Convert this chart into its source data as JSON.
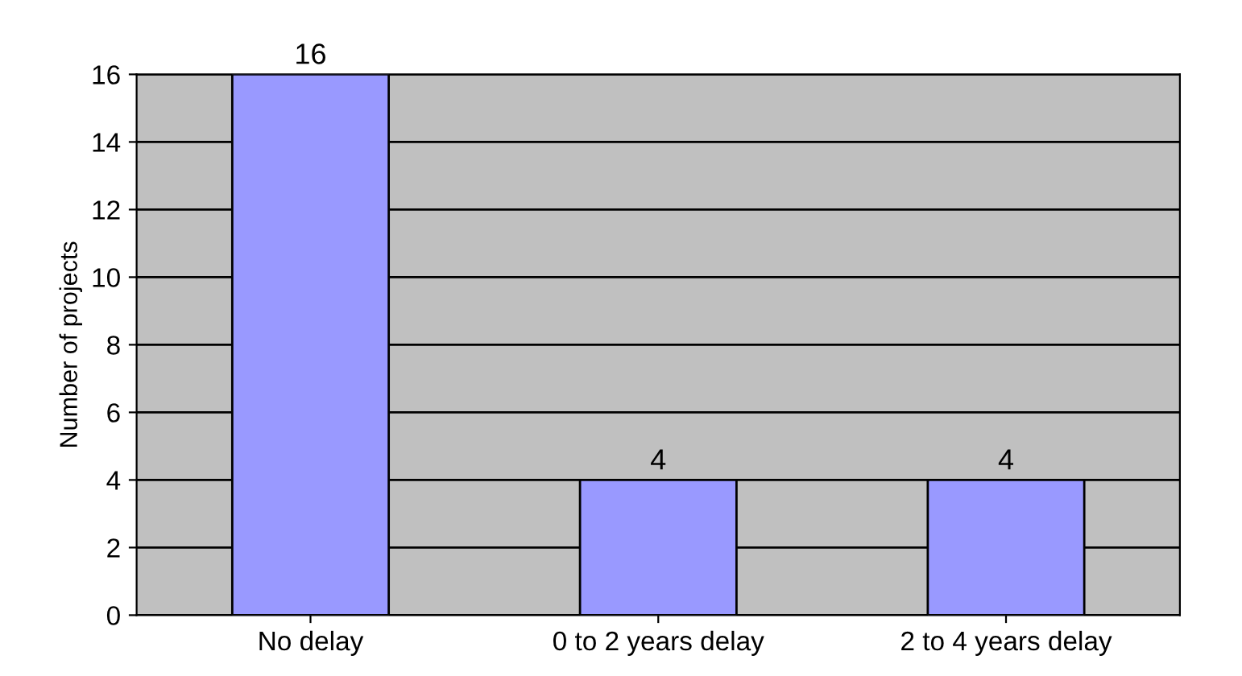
{
  "chart_data": {
    "type": "bar",
    "ylabel": "Number of projects",
    "categories": [
      "No delay",
      "0 to 2 years delay",
      "2 to 4 years delay"
    ],
    "values": [
      16,
      4,
      4
    ],
    "color": "#9999ff",
    "ylim": [
      0,
      16
    ],
    "yticks": [
      0,
      2,
      4,
      6,
      8,
      10,
      12,
      14,
      16
    ],
    "grid": "y",
    "data_labels": true
  }
}
